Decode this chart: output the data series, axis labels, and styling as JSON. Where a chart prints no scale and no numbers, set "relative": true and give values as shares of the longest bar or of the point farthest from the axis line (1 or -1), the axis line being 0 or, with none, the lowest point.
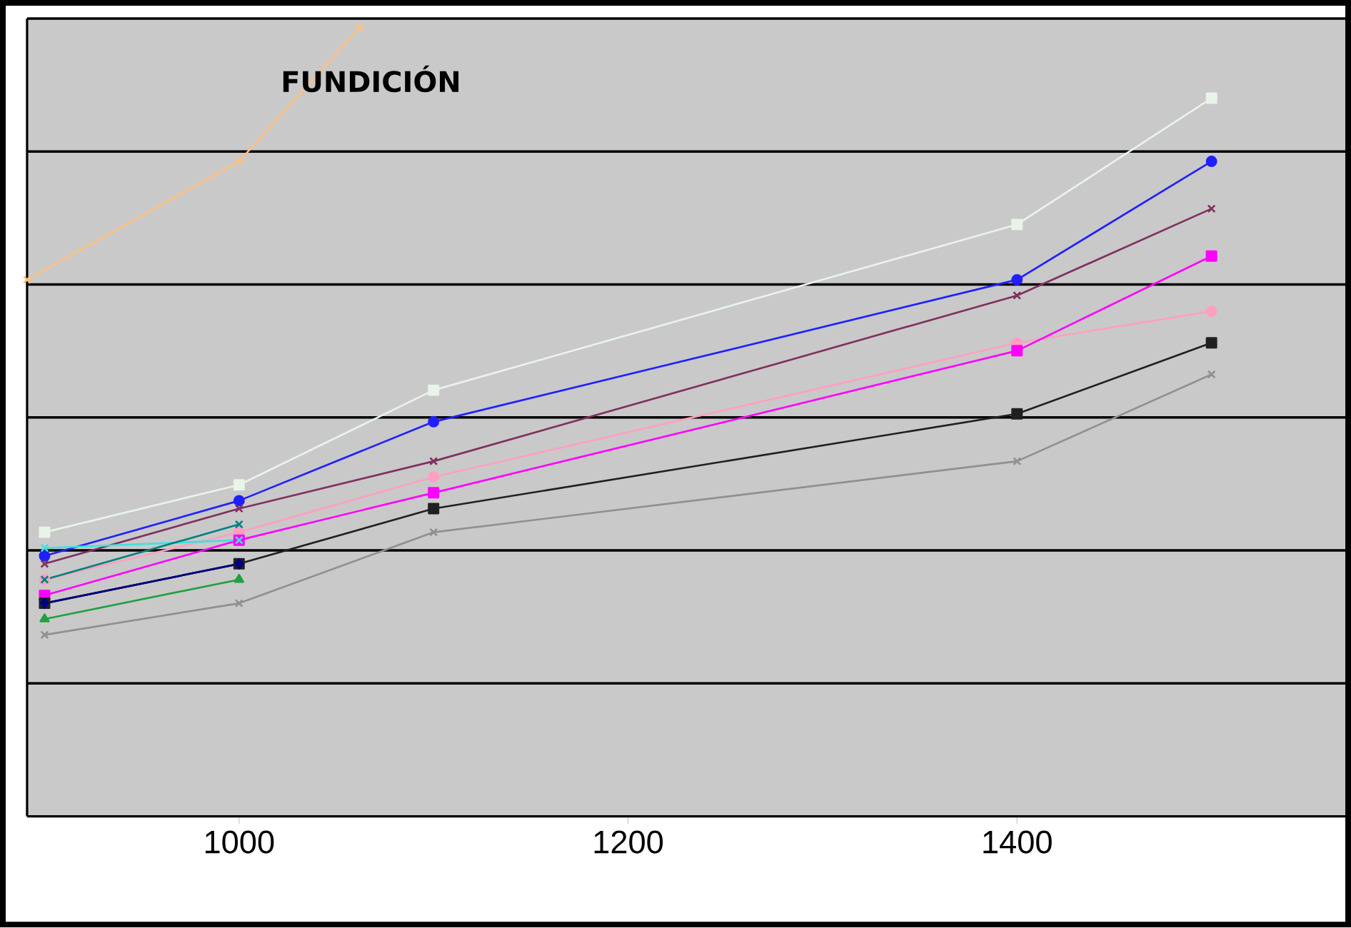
{
  "chart_data": {
    "type": "line",
    "title": "FUNDICIÓN",
    "relative": true,
    "grid": "y",
    "xlim": [
      891,
      1571
    ],
    "xticks": [
      1000,
      1200,
      1400
    ],
    "series": [
      {
        "color": "#ffc080",
        "marker": "cross",
        "x": [
          891,
          1000,
          1062
        ],
        "values": [
          0.68,
          0.83,
          1
        ]
      },
      {
        "color": "#e8f4e8",
        "marker": "square",
        "x": [
          900,
          1000,
          1100,
          1400,
          1500
        ],
        "values": [
          0.36,
          0.42,
          0.54,
          0.75,
          0.91
        ]
      },
      {
        "color": "#2020ff",
        "marker": "circle",
        "x": [
          900,
          1000,
          1100,
          1400,
          1500
        ],
        "values": [
          0.33,
          0.4,
          0.5,
          0.68,
          0.83
        ]
      },
      {
        "color": "#803060",
        "marker": "cross",
        "x": [
          900,
          1000,
          1100,
          1400,
          1500
        ],
        "values": [
          0.32,
          0.39,
          0.45,
          0.66,
          0.77
        ]
      },
      {
        "color": "#ffa0c0",
        "marker": "circle",
        "x": [
          900,
          1000,
          1100,
          1400,
          1500
        ],
        "values": [
          0.3,
          0.36,
          0.43,
          0.6,
          0.64
        ]
      },
      {
        "color": "#ff00ff",
        "marker": "square",
        "x": [
          900,
          1000,
          1100,
          1400,
          1500
        ],
        "values": [
          0.28,
          0.35,
          0.41,
          0.59,
          0.71
        ]
      },
      {
        "color": "#202020",
        "marker": "square",
        "x": [
          900,
          1000,
          1100,
          1400,
          1500
        ],
        "values": [
          0.27,
          0.32,
          0.39,
          0.51,
          0.6
        ]
      },
      {
        "color": "#909090",
        "marker": "cross",
        "x": [
          900,
          1000,
          1100,
          1400,
          1500
        ],
        "values": [
          0.23,
          0.27,
          0.36,
          0.45,
          0.56
        ]
      },
      {
        "color": "#40e0e0",
        "marker": "cross",
        "x": [
          900,
          1000
        ],
        "values": [
          0.34,
          0.35
        ]
      },
      {
        "color": "#008080",
        "marker": "cross",
        "x": [
          900,
          1000
        ],
        "values": [
          0.3,
          0.37
        ]
      },
      {
        "color": "#20a040",
        "marker": "triangle",
        "x": [
          900,
          1000
        ],
        "values": [
          0.25,
          0.3
        ]
      },
      {
        "color": "#000080",
        "marker": "diamond",
        "x": [
          900,
          1000
        ],
        "values": [
          0.27,
          0.32
        ]
      }
    ]
  }
}
